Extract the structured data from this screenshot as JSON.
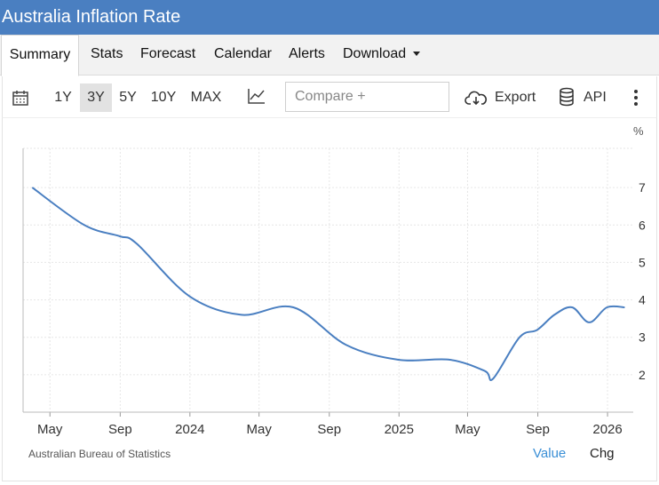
{
  "header": {
    "title": "Australia Inflation Rate"
  },
  "tabs": [
    {
      "label": "Summary",
      "active": true
    },
    {
      "label": "Stats"
    },
    {
      "label": "Forecast"
    },
    {
      "label": "Calendar"
    },
    {
      "label": "Alerts"
    },
    {
      "label": "Download",
      "dropdown": true
    }
  ],
  "toolbar": {
    "ranges": [
      {
        "label": "1Y"
      },
      {
        "label": "3Y",
        "active": true
      },
      {
        "label": "5Y"
      },
      {
        "label": "10Y"
      },
      {
        "label": "MAX"
      }
    ],
    "compare_placeholder": "Compare +",
    "export_label": "Export",
    "api_label": "API",
    "icons": {
      "calendar": "calendar-icon",
      "chart_type": "line-chart-icon",
      "export": "cloud-download-icon",
      "api": "database-icon",
      "more": "more-vertical-icon"
    }
  },
  "chart_data": {
    "type": "line",
    "unit_label": "%",
    "yticks": [
      "2",
      "3",
      "4",
      "5",
      "6",
      "7"
    ],
    "ylim": [
      1,
      8
    ],
    "xticks": [
      "May",
      "Sep",
      "2024",
      "May",
      "Sep",
      "2025",
      "May",
      "Sep",
      "2026"
    ],
    "grid": true,
    "line_color": "#4a7fc1",
    "series": [
      {
        "values": [
          {
            "x": "2023-03-31",
            "y": 7.0
          },
          {
            "x": "2023-06-30",
            "y": 6.0
          },
          {
            "x": "2023-08-31",
            "y": 5.7
          },
          {
            "x": "2023-09-30",
            "y": 5.5
          },
          {
            "x": "2023-12-31",
            "y": 4.1
          },
          {
            "x": "2024-03-31",
            "y": 3.6
          },
          {
            "x": "2024-06-30",
            "y": 3.8
          },
          {
            "x": "2024-09-30",
            "y": 2.8
          },
          {
            "x": "2024-12-31",
            "y": 2.4
          },
          {
            "x": "2025-03-31",
            "y": 2.4
          },
          {
            "x": "2025-05-31",
            "y": 2.1
          },
          {
            "x": "2025-06-15",
            "y": 1.9
          },
          {
            "x": "2025-07-31",
            "y": 3.0
          },
          {
            "x": "2025-08-31",
            "y": 3.2
          },
          {
            "x": "2025-09-30",
            "y": 3.6
          },
          {
            "x": "2025-10-31",
            "y": 3.8
          },
          {
            "x": "2025-11-30",
            "y": 3.4
          },
          {
            "x": "2025-12-31",
            "y": 3.8
          },
          {
            "x": "2026-01-31",
            "y": 3.8
          }
        ]
      }
    ]
  },
  "footer": {
    "source": "Australian Bureau of Statistics",
    "legend_value": "Value",
    "legend_chg": "Chg"
  }
}
